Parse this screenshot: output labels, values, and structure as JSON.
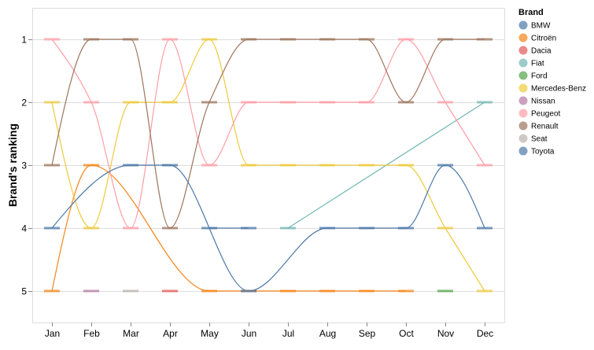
{
  "chart_data": {
    "type": "line",
    "xlabel": "",
    "ylabel": "Brand's ranking",
    "categories": [
      "Jan",
      "Feb",
      "Mar",
      "Apr",
      "May",
      "Jun",
      "Jul",
      "Aug",
      "Sep",
      "Oct",
      "Nov",
      "Dec"
    ],
    "y_ticks": [
      1,
      2,
      3,
      4,
      5
    ],
    "ylim": [
      0.5,
      5.5
    ],
    "y_reversed": true,
    "grid": true,
    "line_interpolation": "monotone",
    "legend": {
      "title": "Brand",
      "position": "right"
    },
    "series": [
      {
        "name": "BMW",
        "color": "#4c78a8",
        "values": [
          null,
          null,
          null,
          null,
          4,
          4,
          null,
          null,
          null,
          null,
          null,
          null
        ]
      },
      {
        "name": "Citroën",
        "color": "#f58518",
        "values": [
          5,
          3,
          null,
          null,
          5,
          5,
          5,
          5,
          5,
          5,
          null,
          null
        ]
      },
      {
        "name": "Dacia",
        "color": "#e45756",
        "values": [
          null,
          null,
          null,
          5,
          null,
          null,
          null,
          null,
          null,
          null,
          null,
          null
        ]
      },
      {
        "name": "Fiat",
        "color": "#72b7b2",
        "values": [
          null,
          null,
          null,
          null,
          null,
          null,
          4,
          null,
          null,
          null,
          null,
          2
        ]
      },
      {
        "name": "Ford",
        "color": "#54a24b",
        "values": [
          null,
          null,
          null,
          null,
          null,
          null,
          null,
          null,
          null,
          null,
          5,
          null
        ]
      },
      {
        "name": "Mercedes-Benz",
        "color": "#eeca3b",
        "values": [
          2,
          4,
          2,
          2,
          1,
          3,
          3,
          3,
          3,
          3,
          4,
          5
        ]
      },
      {
        "name": "Nissan",
        "color": "#b279a2",
        "values": [
          null,
          5,
          null,
          null,
          null,
          null,
          null,
          null,
          null,
          null,
          null,
          null
        ]
      },
      {
        "name": "Peugeot",
        "color": "#ff9da6",
        "values": [
          1,
          2,
          4,
          1,
          3,
          2,
          2,
          2,
          2,
          1,
          2,
          3
        ]
      },
      {
        "name": "Renault",
        "color": "#9d755d",
        "values": [
          3,
          1,
          1,
          4,
          2,
          1,
          1,
          1,
          1,
          2,
          1,
          1
        ]
      },
      {
        "name": "Seat",
        "color": "#bab0ac",
        "values": [
          null,
          null,
          5,
          null,
          null,
          null,
          null,
          null,
          null,
          null,
          null,
          null
        ]
      },
      {
        "name": "Toyota",
        "color": "#4c78a8",
        "values": [
          4,
          null,
          3,
          3,
          null,
          5,
          null,
          4,
          4,
          4,
          3,
          4
        ]
      }
    ]
  }
}
